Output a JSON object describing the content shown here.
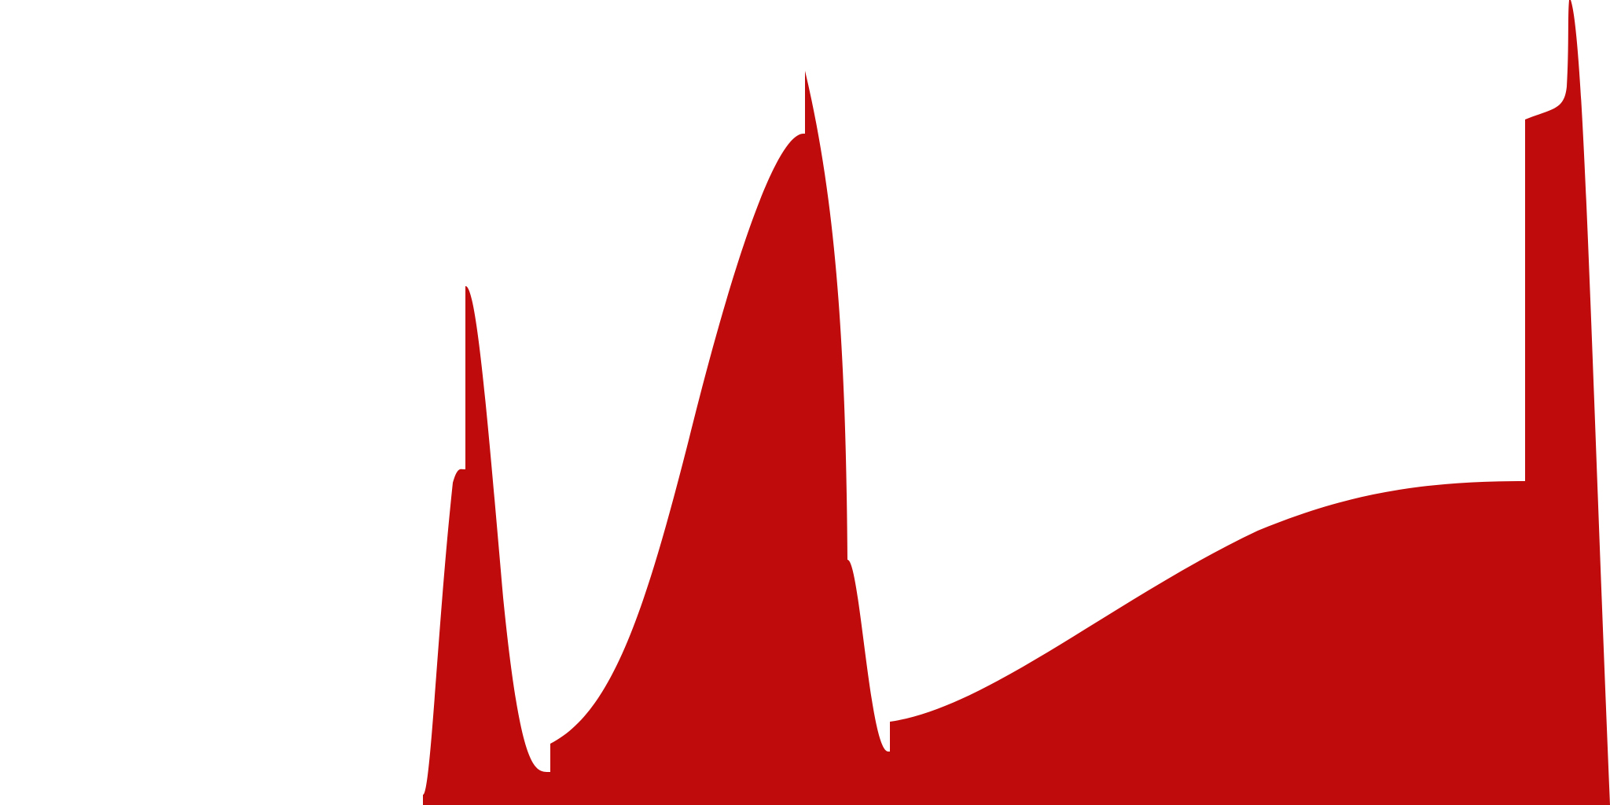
{
  "graphic": {
    "background_color": "#ffffff",
    "fill_color": "#bf0b0b",
    "shape_name": "red-area-silhouette"
  }
}
